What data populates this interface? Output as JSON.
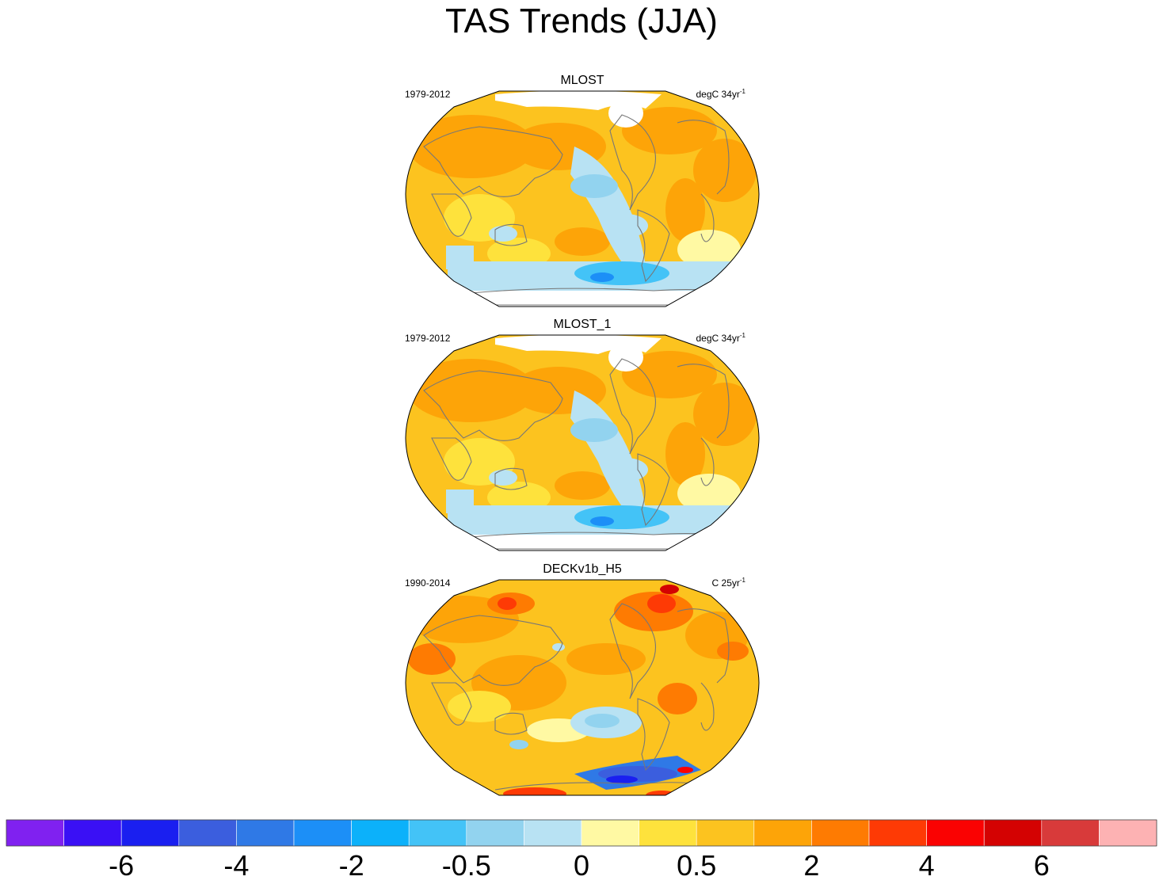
{
  "title": "TAS Trends (JJA)",
  "chart_data": [
    {
      "type": "heatmap",
      "title": "MLOST",
      "period": "1979-2012",
      "units_main": "degC 34yr",
      "units_exp": "-1",
      "projection": "robinson",
      "dominant_level": "0.5-2 (warming), cooling in eastern Pacific and Southern Ocean"
    },
    {
      "type": "heatmap",
      "title": "MLOST_1",
      "period": "1979-2012",
      "units_main": "degC 34yr",
      "units_exp": "-1",
      "projection": "robinson",
      "dominant_level": "0.5-2 (warming), cooling in eastern Pacific and Southern Ocean"
    },
    {
      "type": "heatmap",
      "title": "DECKv1b_H5",
      "period": "1990-2014",
      "units_main": "C 25yr",
      "units_exp": "-1",
      "projection": "robinson",
      "dominant_level": "0.5-4 (warming), strongest over northern high latitudes"
    }
  ],
  "colorbar": {
    "colors": [
      "#8021f0",
      "#3a10f5",
      "#1a1ff0",
      "#3b5ede",
      "#2f79e6",
      "#1c8ff7",
      "#0cb1fa",
      "#43c3f7",
      "#92d3ef",
      "#b8e2f3",
      "#fff9a3",
      "#fee23c",
      "#fcc31f",
      "#fda408",
      "#fe7b02",
      "#fe3a05",
      "#fa0202",
      "#d40202",
      "#d83a3a",
      "#fdb2b3"
    ],
    "tick_labels": [
      "-6",
      "-4",
      "-2",
      "-0.5",
      "0",
      "0.5",
      "2",
      "4",
      "6"
    ],
    "tick_boundaries": [
      2,
      4,
      6,
      8,
      10,
      12,
      14,
      16,
      18
    ]
  }
}
